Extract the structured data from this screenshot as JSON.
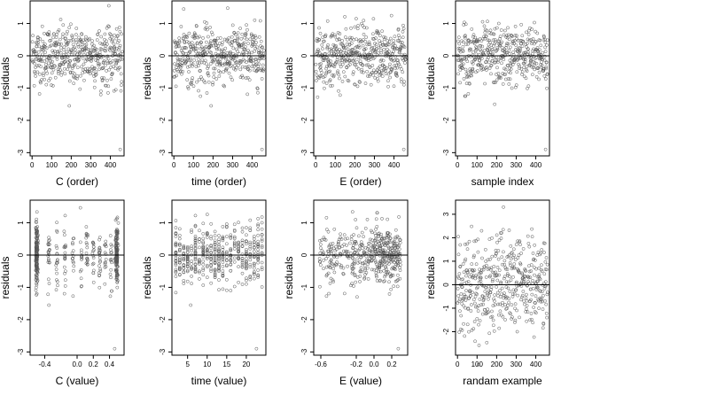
{
  "chart_data": [
    {
      "type": "scatter",
      "xlabel": "C (order)",
      "ylabel": "residuals",
      "xlim": [
        -10,
        470
      ],
      "ylim": [
        -3.1,
        1.7
      ],
      "xticks": [
        0,
        100,
        200,
        300,
        400
      ],
      "yticks": [
        -3,
        -2,
        -1,
        0,
        1
      ],
      "hline": 0,
      "n_points": 460,
      "x_distribution": "index 1..460",
      "y_summary": {
        "center": 0,
        "spread": 0.45,
        "outliers": [
          -2.9,
          -1.55
        ]
      }
    },
    {
      "type": "scatter",
      "xlabel": "time (order)",
      "ylabel": "residuals",
      "xlim": [
        -10,
        470
      ],
      "ylim": [
        -3.1,
        1.7
      ],
      "xticks": [
        0,
        100,
        200,
        300,
        400
      ],
      "yticks": [
        -3,
        -2,
        -1,
        0,
        1
      ],
      "hline": 0,
      "n_points": 460,
      "x_distribution": "index 1..460",
      "y_summary": {
        "center": 0,
        "spread": 0.45,
        "outliers": [
          -2.9,
          -1.55
        ]
      }
    },
    {
      "type": "scatter",
      "xlabel": "E (order)",
      "ylabel": "residuals",
      "xlim": [
        -10,
        470
      ],
      "ylim": [
        -3.1,
        1.7
      ],
      "xticks": [
        0,
        100,
        200,
        300,
        400
      ],
      "yticks": [
        -3,
        -2,
        -1,
        0,
        1
      ],
      "hline": 0,
      "n_points": 460,
      "x_distribution": "index 1..460",
      "y_summary": {
        "center": 0,
        "spread": 0.45,
        "outliers": [
          -2.9
        ]
      }
    },
    {
      "type": "scatter",
      "xlabel": "sample index",
      "ylabel": "residuals",
      "xlim": [
        -10,
        470
      ],
      "ylim": [
        -3.1,
        1.7
      ],
      "xticks": [
        0,
        100,
        200,
        300,
        400
      ],
      "yticks": [
        -3,
        -2,
        -1,
        0,
        1
      ],
      "hline": 0,
      "n_points": 460,
      "x_distribution": "index 1..460",
      "y_summary": {
        "center": 0,
        "spread": 0.45,
        "outliers": [
          -2.9,
          -1.5
        ]
      }
    },
    {
      "type": "scatter",
      "xlabel": "C (value)",
      "ylabel": "residuals",
      "xlim": [
        -0.58,
        0.58
      ],
      "ylim": [
        -3.1,
        1.7
      ],
      "xticks": [
        -0.4,
        0.0,
        0.2,
        0.4
      ],
      "yticks": [
        -3,
        -2,
        -1,
        0,
        1
      ],
      "hline": 0,
      "n_points": 460,
      "x_distribution": "clustered at -0.5, 0.5 and several levels between",
      "y_summary": {
        "center": 0,
        "spread": 0.45,
        "outliers": [
          -2.9,
          -1.55
        ]
      }
    },
    {
      "type": "scatter",
      "xlabel": "time (value)",
      "ylabel": "residuals",
      "xlim": [
        1,
        25
      ],
      "ylim": [
        -3.1,
        1.7
      ],
      "xticks": [
        5,
        10,
        15,
        20
      ],
      "yticks": [
        -3,
        -2,
        -1,
        0,
        1
      ],
      "hline": 0,
      "n_points": 460,
      "x_distribution": "integer levels 2..24",
      "y_summary": {
        "center": 0,
        "spread": 0.45,
        "outliers": [
          -2.9,
          -1.55
        ]
      }
    },
    {
      "type": "scatter",
      "xlabel": "E (value)",
      "ylabel": "residuals",
      "xlim": [
        -0.68,
        0.38
      ],
      "ylim": [
        -3.1,
        1.7
      ],
      "xticks": [
        -0.6,
        -0.2,
        0.0,
        0.2
      ],
      "yticks": [
        -3,
        -2,
        -1,
        0,
        1
      ],
      "hline": 0,
      "n_points": 460,
      "x_distribution": "skewed, dense between 0.0 and 0.3",
      "y_summary": {
        "center": 0,
        "spread": 0.45,
        "outliers": [
          -2.9
        ]
      }
    },
    {
      "type": "scatter",
      "xlabel": "randam example",
      "ylabel": "residuals",
      "xlim": [
        -10,
        470
      ],
      "ylim": [
        -3.0,
        3.6
      ],
      "xticks": [
        0,
        100,
        200,
        300,
        400
      ],
      "yticks": [
        -2,
        -1,
        0,
        1,
        2,
        3
      ],
      "hline": 0,
      "n_points": 460,
      "x_distribution": "index 1..460",
      "y_summary": {
        "center": 0,
        "spread": 1.0,
        "outliers": []
      }
    }
  ]
}
